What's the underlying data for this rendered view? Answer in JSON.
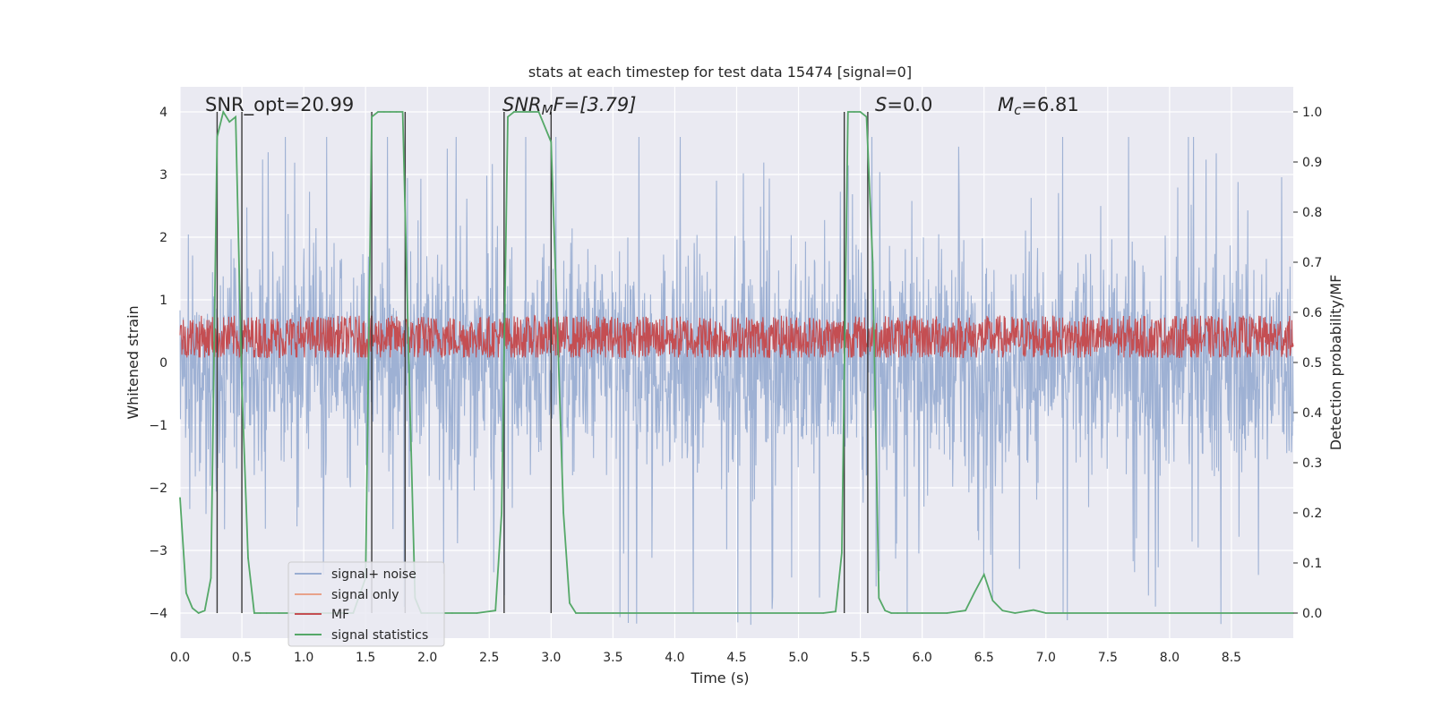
{
  "chart_data": {
    "type": "line",
    "title": "stats at each timestep for test data 15474 [signal=0]",
    "xlabel": "Time (s)",
    "ylabel": "Whitened strain",
    "y2label": "Detection probability/MF",
    "xlim": [
      0.0,
      9.0
    ],
    "ylim": [
      -4.4,
      4.4
    ],
    "y2lim": [
      -0.05,
      1.05
    ],
    "x_ticks": [
      0.0,
      0.5,
      1.0,
      1.5,
      2.0,
      2.5,
      3.0,
      3.5,
      4.0,
      4.5,
      5.0,
      5.5,
      6.0,
      6.5,
      7.0,
      7.5,
      8.0,
      8.5
    ],
    "x_tick_labels": [
      "0.0",
      "0.5",
      "1.0",
      "1.5",
      "2.0",
      "2.5",
      "3.0",
      "3.5",
      "4.0",
      "4.5",
      "5.0",
      "5.5",
      "6.0",
      "6.5",
      "7.0",
      "7.5",
      "8.0",
      "8.5"
    ],
    "y_ticks": [
      4,
      3,
      2,
      1,
      0,
      -1,
      -2,
      -3,
      -4
    ],
    "y_tick_labels": [
      "4",
      "3",
      "2",
      "1",
      "0",
      "−1",
      "−2",
      "−3",
      "−4"
    ],
    "y2_ticks": [
      1.0,
      0.9,
      0.8,
      0.7,
      0.6,
      0.5,
      0.4,
      0.3,
      0.2,
      0.1,
      0.0
    ],
    "y2_tick_labels": [
      "1.0",
      "0.9",
      "0.8",
      "0.7",
      "0.6",
      "0.5",
      "0.4",
      "0.3",
      "0.2",
      "0.1",
      "0.0"
    ],
    "annotations": {
      "snr_opt": "SNR_opt=20.99",
      "snr_mf_main": "SNR",
      "snr_mf_sub": "M",
      "snr_mf_rest": "F=[3.79]",
      "s_main": "S",
      "s_rest": "=0.0",
      "mc_main": "M",
      "mc_sub": "c",
      "mc_rest": "=6.81"
    },
    "legend": {
      "placement": "lower-left",
      "entries": [
        "signal+ noise",
        "signal only",
        "MF",
        "signal statistics"
      ]
    },
    "colors": {
      "background": "#eaeaf2",
      "grid": "#ffffff",
      "signal_noise": "#9aaed2",
      "signal_only": "#e8a28a",
      "mf": "#c44e52",
      "signal_statistics": "#55a868",
      "vlines": "#3a3a3a"
    },
    "vertical_markers_s": [
      0.3,
      0.5,
      1.55,
      1.82,
      2.62,
      3.0,
      5.37,
      5.56
    ],
    "signal_statistics": {
      "x": [
        0.0,
        0.05,
        0.1,
        0.15,
        0.2,
        0.25,
        0.3,
        0.35,
        0.4,
        0.45,
        0.5,
        0.55,
        0.6,
        0.65,
        0.7,
        0.8,
        0.9,
        1.0,
        1.2,
        1.4,
        1.5,
        1.55,
        1.6,
        1.65,
        1.7,
        1.75,
        1.8,
        1.85,
        1.9,
        1.95,
        2.0,
        2.2,
        2.4,
        2.55,
        2.6,
        2.65,
        2.7,
        2.8,
        2.9,
        3.0,
        3.05,
        3.1,
        3.15,
        3.2,
        3.3,
        3.5,
        4.0,
        4.5,
        5.0,
        5.2,
        5.3,
        5.35,
        5.4,
        5.45,
        5.5,
        5.55,
        5.6,
        5.65,
        5.7,
        5.75,
        5.8,
        6.0,
        6.2,
        6.35,
        6.42,
        6.5,
        6.57,
        6.65,
        6.75,
        6.9,
        7.0,
        7.5,
        8.0,
        8.5,
        9.0
      ],
      "y": [
        0.23,
        0.04,
        0.01,
        0.0,
        0.005,
        0.07,
        0.95,
        1.0,
        0.98,
        0.99,
        0.45,
        0.11,
        0.0,
        0.0,
        0.0,
        0.0,
        0.0,
        0.0,
        0.0,
        0.0,
        0.07,
        0.99,
        1.0,
        1.0,
        1.0,
        1.0,
        1.0,
        0.5,
        0.03,
        0.0,
        0.0,
        0.0,
        0.0,
        0.005,
        0.2,
        0.99,
        1.0,
        1.0,
        1.0,
        0.94,
        0.58,
        0.2,
        0.02,
        0.0,
        0.0,
        0.0,
        0.0,
        0.0,
        0.0,
        0.0,
        0.003,
        0.12,
        1.0,
        1.0,
        1.0,
        0.99,
        0.7,
        0.03,
        0.005,
        0.0,
        0.0,
        0.0,
        0.0,
        0.005,
        0.04,
        0.077,
        0.025,
        0.005,
        0.0,
        0.006,
        0.0,
        0.0,
        0.0,
        0.0,
        0.0
      ]
    },
    "signal_noise": {
      "description_values": "noise samples between about -4.3 and 3.6 whitened strain",
      "ymin": -4.3,
      "ymax": 3.6
    },
    "mf": {
      "center": 0.4,
      "min": 0.0,
      "max": 0.8
    }
  }
}
